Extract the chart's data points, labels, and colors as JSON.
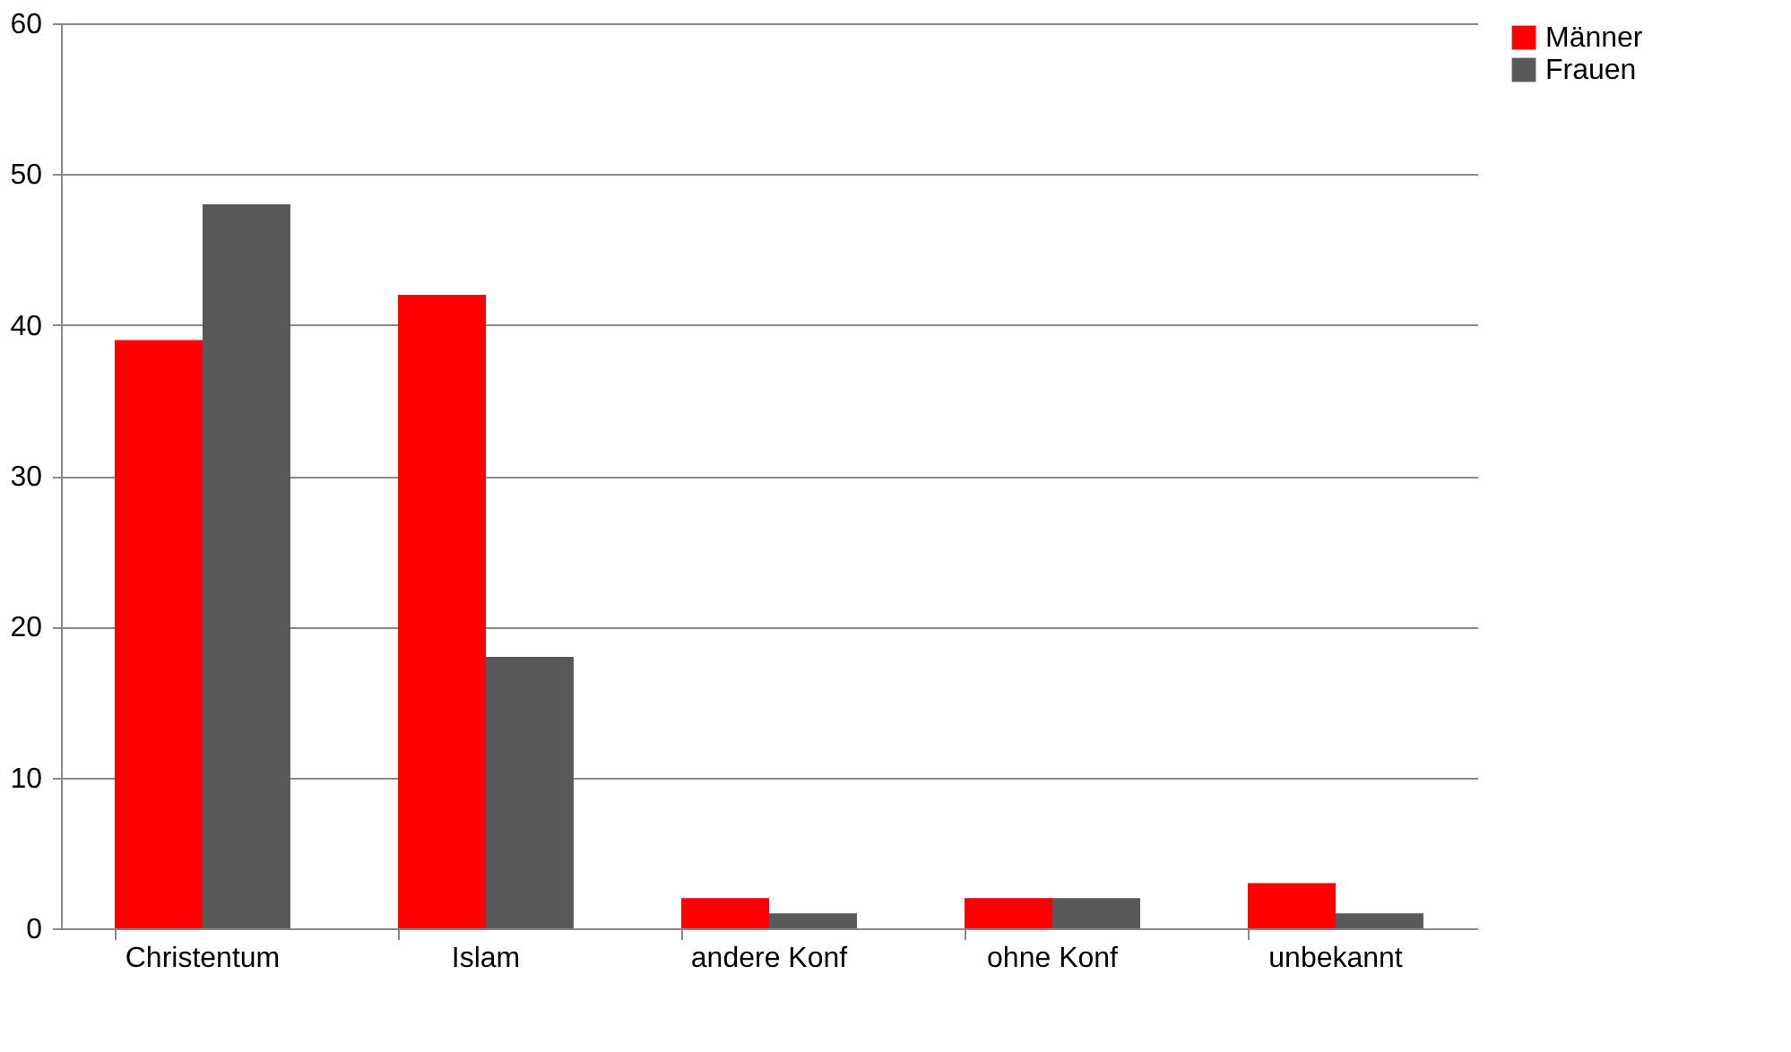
{
  "chart_data": {
    "type": "bar",
    "categories": [
      "Christentum",
      "Islam",
      "andere Konf",
      "ohne Konf",
      "unbekannt"
    ],
    "series": [
      {
        "name": "Männer",
        "color": "#ff0000",
        "values": [
          39,
          42,
          2,
          2,
          3
        ]
      },
      {
        "name": "Frauen",
        "color": "#595959",
        "values": [
          48,
          18,
          1,
          2,
          1
        ]
      }
    ],
    "ylim": [
      0,
      60
    ],
    "yticks": [
      0,
      10,
      20,
      30,
      40,
      50,
      60
    ],
    "grid": "y",
    "legend": "right"
  }
}
